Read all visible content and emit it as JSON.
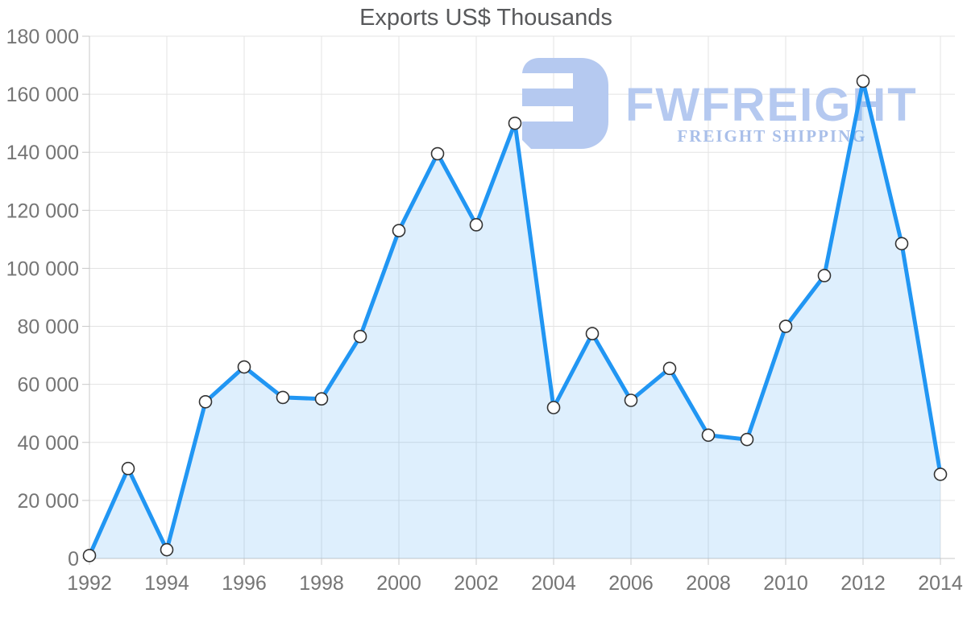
{
  "page": {
    "background": "#ffffff"
  },
  "chart_data": {
    "type": "area",
    "title": "Exports US$ Thousands",
    "xlabel": "",
    "ylabel": "",
    "x": [
      1992,
      1993,
      1994,
      1995,
      1996,
      1997,
      1998,
      1999,
      2000,
      2001,
      2002,
      2003,
      2004,
      2005,
      2006,
      2007,
      2008,
      2009,
      2010,
      2011,
      2012,
      2013,
      2014
    ],
    "series": [
      {
        "name": "Exports US$ Thousands",
        "values": [
          1000,
          31000,
          3000,
          54000,
          66000,
          55500,
          55000,
          76500,
          113000,
          139500,
          115000,
          150000,
          52000,
          77500,
          54500,
          65500,
          42500,
          41000,
          80000,
          97500,
          164500,
          108500,
          29000
        ]
      }
    ],
    "ylim": [
      0,
      180000
    ],
    "ytick_step": 20000,
    "xtick_every": 2,
    "grid": true,
    "legend": "none",
    "marker": "white-circle",
    "y_tick_labels": [
      "0",
      "20 000",
      "40 000",
      "60 000",
      "80 000",
      "100 000",
      "120 000",
      "140 000",
      "160 000",
      "180 000"
    ],
    "x_tick_labels": [
      "1992",
      "1994",
      "1996",
      "1998",
      "2000",
      "2002",
      "2004",
      "2006",
      "2008",
      "2010",
      "2012",
      "2014"
    ],
    "colors": {
      "line": "#2196f3",
      "fill": "rgba(33,150,243,0.15)",
      "marker_fill": "#ffffff",
      "marker_stroke": "#333333",
      "grid": "#e3e3e3",
      "axis": "#c9c9c9",
      "tick_label": "#757575",
      "title": "#58595b"
    }
  },
  "watermark": {
    "brand": "FWFREIGHT",
    "tagline": "FREIGHT SHIPPING",
    "icon": "fwfreight-logo-icon",
    "color": "#b5c9f0",
    "tagline_color": "#a9bfe9"
  }
}
